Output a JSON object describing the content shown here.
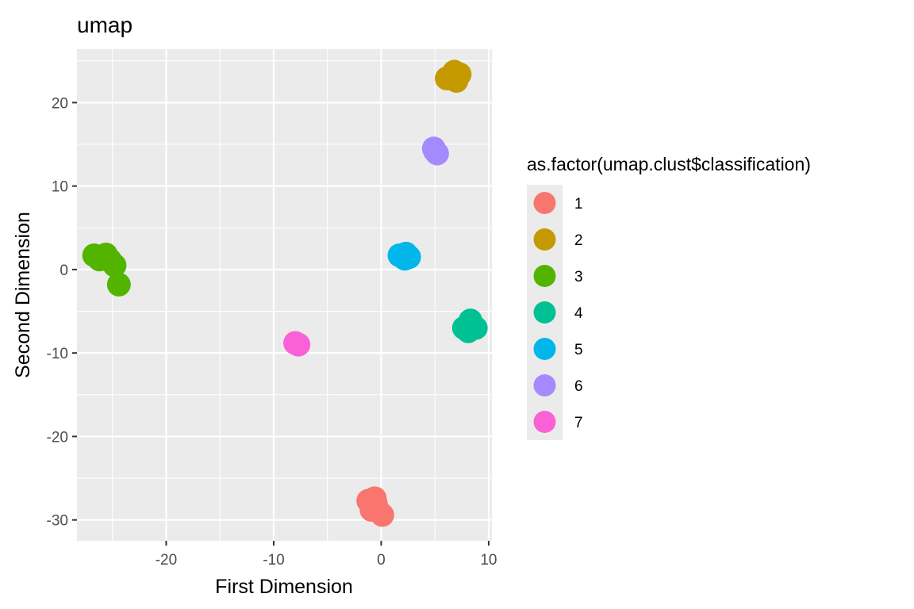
{
  "chart_data": {
    "type": "scatter",
    "title": "umap",
    "xlabel": "First Dimension",
    "ylabel": "Second Dimension",
    "xlim": [
      -28.3,
      10.3
    ],
    "ylim": [
      -32.5,
      26.4
    ],
    "x_ticks": [
      -20,
      -10,
      0,
      10
    ],
    "x_tick_labels": [
      "-20",
      "-10",
      "0",
      "10"
    ],
    "y_ticks": [
      -30,
      -20,
      -10,
      0,
      10,
      20
    ],
    "y_tick_labels": [
      "-30",
      "-20",
      "-10",
      "0",
      "10",
      "20"
    ],
    "grid": true,
    "panel_background": "#ebebeb",
    "legend": {
      "title": "as.factor(umap.clust$classification)",
      "position": "right",
      "entries": [
        "1",
        "2",
        "3",
        "4",
        "5",
        "6",
        "7"
      ]
    },
    "series": [
      {
        "name": "1",
        "color": "#f8766d",
        "points": [
          [
            -1.2,
            -27.7
          ],
          [
            -0.5,
            -28.0
          ],
          [
            -0.9,
            -28.8
          ],
          [
            -0.2,
            -29.0
          ],
          [
            0.1,
            -29.4
          ],
          [
            -0.6,
            -27.4
          ]
        ]
      },
      {
        "name": "2",
        "color": "#c49a00",
        "points": [
          [
            6.1,
            22.9
          ],
          [
            6.8,
            23.7
          ],
          [
            7.3,
            23.4
          ],
          [
            7.0,
            22.6
          ],
          [
            6.5,
            23.2
          ]
        ]
      },
      {
        "name": "3",
        "color": "#53b400",
        "points": [
          [
            -26.7,
            1.7
          ],
          [
            -26.2,
            1.2
          ],
          [
            -25.6,
            1.8
          ],
          [
            -25.2,
            1.1
          ],
          [
            -24.8,
            0.5
          ],
          [
            -24.4,
            -1.8
          ]
        ]
      },
      {
        "name": "4",
        "color": "#00c094",
        "points": [
          [
            7.7,
            -7.0
          ],
          [
            8.3,
            -6.1
          ],
          [
            8.8,
            -7.0
          ],
          [
            8.1,
            -7.4
          ]
        ]
      },
      {
        "name": "5",
        "color": "#00b6eb",
        "points": [
          [
            1.7,
            1.7
          ],
          [
            2.3,
            1.9
          ],
          [
            2.6,
            1.5
          ],
          [
            2.2,
            1.3
          ]
        ]
      },
      {
        "name": "6",
        "color": "#a58aff",
        "points": [
          [
            4.9,
            14.5
          ],
          [
            5.2,
            13.9
          ],
          [
            5.0,
            14.2
          ]
        ]
      },
      {
        "name": "7",
        "color": "#fb61d7",
        "points": [
          [
            -8.0,
            -8.8
          ],
          [
            -7.7,
            -9.0
          ]
        ]
      }
    ]
  }
}
